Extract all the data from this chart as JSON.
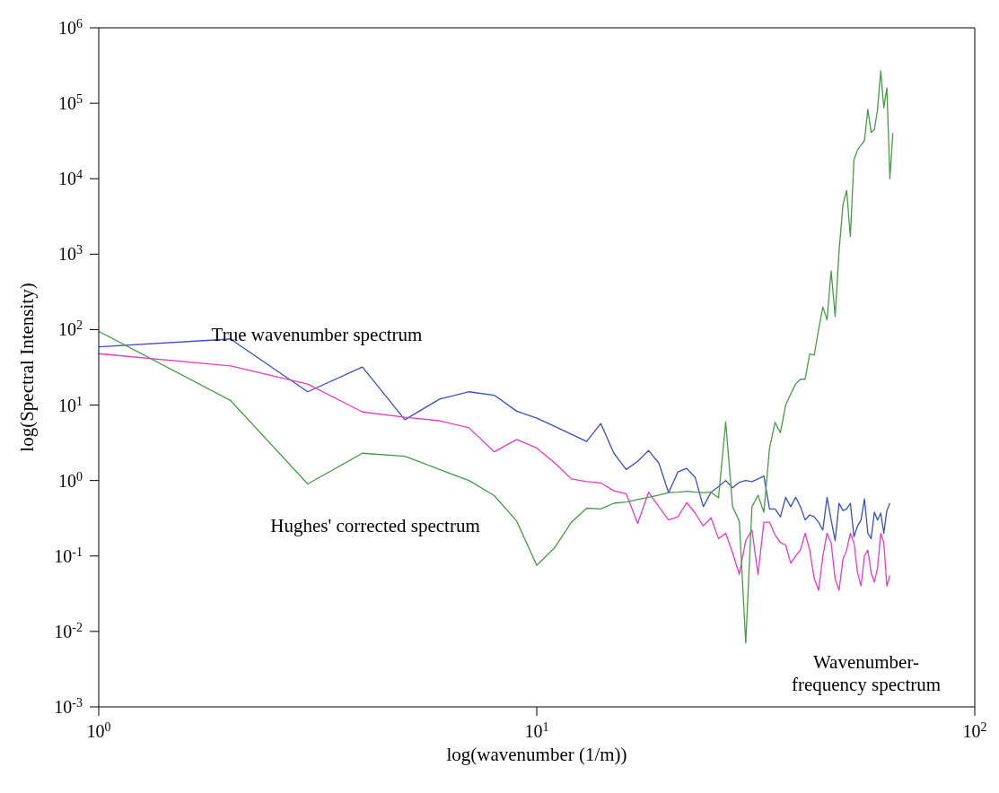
{
  "chart_data": {
    "type": "line",
    "xlabel": "log(wavenumber (1/m))",
    "ylabel": "log(Spectral Intensity)",
    "log": "xy",
    "grid": false,
    "legend": false,
    "marker": "none",
    "line_style": "solid",
    "xlim": [
      1,
      100
    ],
    "xticks": [
      {
        "value": 1,
        "label": "10$^{0}$"
      },
      {
        "value": 10,
        "label": "10$^{1}$"
      },
      {
        "value": 100,
        "label": "10$^{2}$"
      }
    ],
    "ylim": [
      0.001,
      1000000
    ],
    "yticks": [
      {
        "value": 0.001,
        "label": "10$^{-3}$"
      },
      {
        "value": 0.01,
        "label": "10$^{-2}$"
      },
      {
        "value": 0.1,
        "label": "10$^{-1}$"
      },
      {
        "value": 1,
        "label": "10$^{0}$"
      },
      {
        "value": 10,
        "label": "10$^{1}$"
      },
      {
        "value": 100,
        "label": "10$^{2}$"
      },
      {
        "value": 1000,
        "label": "10$^{3}$"
      },
      {
        "value": 10000,
        "label": "10$^{4}$"
      },
      {
        "value": 100000,
        "label": "10$^{5}$"
      },
      {
        "value": 1000000,
        "label": "10$^{6}$"
      }
    ],
    "x": [
      1,
      2,
      3,
      4,
      5,
      6,
      7,
      8,
      9,
      10,
      11,
      12,
      13,
      14,
      15,
      16,
      17,
      18,
      19,
      20,
      21,
      22,
      23,
      24,
      25,
      26,
      27,
      28,
      29,
      30,
      31,
      32,
      33,
      34,
      35,
      36,
      37,
      38,
      39,
      40,
      41,
      42,
      43,
      44,
      45,
      46,
      47,
      48,
      49,
      50,
      51,
      52,
      53,
      54,
      55,
      56,
      57,
      58,
      59,
      60,
      61,
      62,
      63,
      64,
      65
    ],
    "series": [
      {
        "color": "#3a4fc0",
        "values": [
          59,
          75,
          15,
          32,
          6.4,
          12,
          15,
          13.5,
          8.3,
          6.7,
          5.2,
          4.1,
          3.3,
          5.7,
          2.3,
          1.4,
          1.8,
          2.5,
          1.7,
          0.69,
          1.3,
          1.45,
          1.1,
          0.45,
          0.7,
          0.83,
          1.0,
          0.8,
          0.95,
          1.0,
          0.97,
          1.05,
          1.15,
          0.42,
          0.42,
          0.33,
          0.6,
          0.45,
          0.6,
          0.45,
          0.3,
          0.35,
          0.33,
          0.28,
          0.22,
          0.6,
          0.3,
          0.16,
          0.5,
          0.4,
          0.42,
          0.5,
          0.18,
          0.25,
          0.3,
          0.57,
          0.2,
          0.17,
          0.38,
          0.3,
          0.37,
          0.2,
          0.4,
          0.5,
          null
        ]
      },
      {
        "color": "#e83cc0",
        "values": [
          48,
          33,
          19,
          8.1,
          6.9,
          6.2,
          5.0,
          2.4,
          3.5,
          2.7,
          1.7,
          1.05,
          0.97,
          0.93,
          0.73,
          0.67,
          0.27,
          0.7,
          0.45,
          0.3,
          0.33,
          0.51,
          0.37,
          0.25,
          0.32,
          0.17,
          0.2,
          0.11,
          0.057,
          0.16,
          0.22,
          0.057,
          0.28,
          0.28,
          0.19,
          0.15,
          0.14,
          0.08,
          0.1,
          0.12,
          0.2,
          0.12,
          0.05,
          0.035,
          0.1,
          0.2,
          0.15,
          0.05,
          0.035,
          0.09,
          0.12,
          0.2,
          0.15,
          0.06,
          0.04,
          0.1,
          0.12,
          0.06,
          0.045,
          0.07,
          0.2,
          0.15,
          0.04,
          0.055,
          null
        ]
      },
      {
        "color": "#4a9a4a",
        "values": [
          95,
          11.5,
          0.9,
          2.3,
          2.1,
          1.4,
          1.0,
          0.63,
          0.29,
          0.075,
          0.13,
          0.28,
          0.43,
          0.42,
          0.5,
          0.52,
          0.56,
          0.6,
          0.64,
          0.69,
          0.7,
          0.72,
          0.7,
          0.69,
          0.7,
          0.59,
          6,
          0.45,
          0.29,
          0.007,
          0.45,
          0.64,
          0.38,
          2.7,
          5.9,
          4.3,
          10,
          14,
          19,
          22,
          22,
          48,
          46,
          100,
          200,
          135,
          600,
          150,
          1100,
          4500,
          7000,
          1700,
          18000,
          24000,
          28000,
          32000,
          83000,
          41000,
          45000,
          83000,
          270000,
          87000,
          160000,
          10000,
          40000
        ]
      }
    ],
    "annotations": [
      "True wavenumber spectrum",
      "Hughes' corrected spectrum",
      "Wavenumber-frequency spectrum"
    ]
  }
}
